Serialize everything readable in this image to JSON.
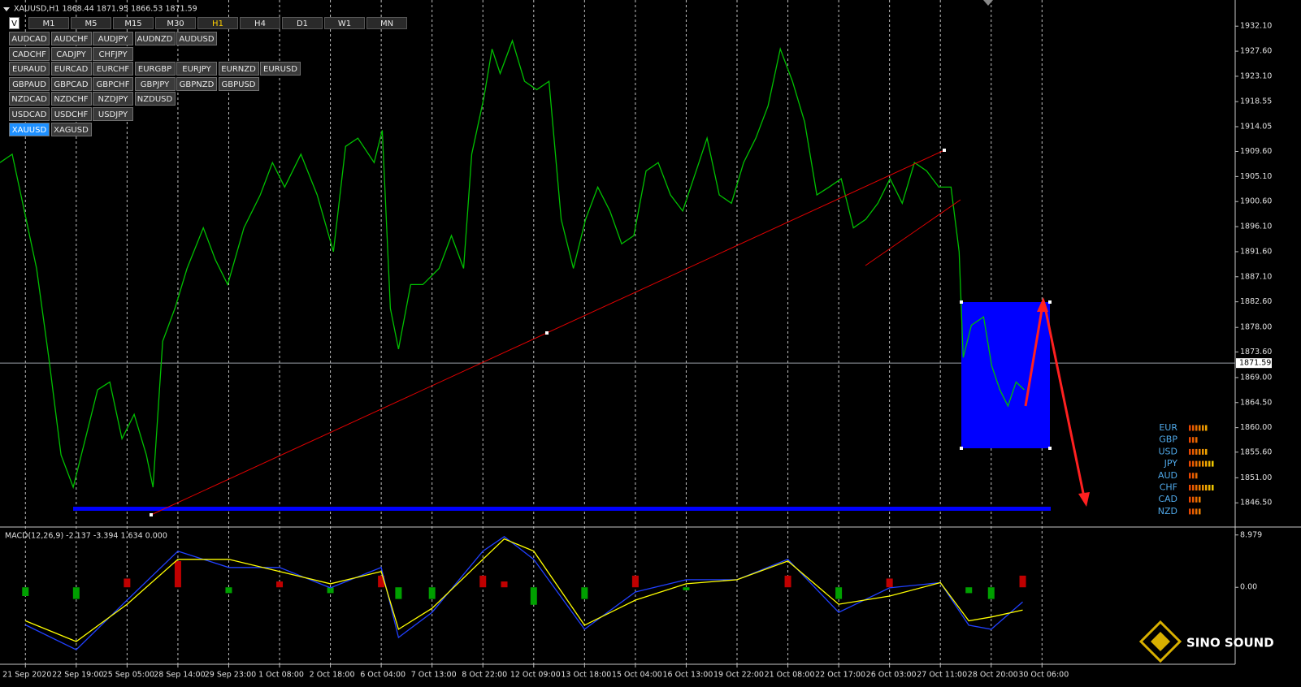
{
  "title": "XAUUSD,H1  1868.44 1871.95 1866.53 1871.59",
  "v_button": "V",
  "timeframes": [
    "M1",
    "M5",
    "M15",
    "M30",
    "H1",
    "H4",
    "D1",
    "W1",
    "MN"
  ],
  "active_timeframe": "H1",
  "symbols": [
    [
      "AUDCAD",
      "AUDCHF",
      "AUDJPY",
      "AUDNZD",
      "AUDUSD"
    ],
    [
      "CADCHF",
      "CADJPY",
      "CHFJPY"
    ],
    [
      "EURAUD",
      "EURCAD",
      "EURCHF",
      "EURGBP",
      "EURJPY",
      "EURNZD",
      "EURUSD"
    ],
    [
      "GBPAUD",
      "GBPCAD",
      "GBPCHF",
      "GBPJPY",
      "GBPNZD",
      "GBPUSD"
    ],
    [
      "NZDCAD",
      "NZDCHF",
      "NZDJPY",
      "NZDUSD"
    ],
    [
      "USDCAD",
      "USDCHF",
      "USDJPY"
    ],
    [
      "XAUUSD",
      "XAGUSD"
    ]
  ],
  "active_symbol": "XAUUSD",
  "watermark": "SINO SOUND",
  "currency_strength": {
    "currencies": [
      "EUR",
      "GBP",
      "USD",
      "JPY",
      "AUD",
      "CHF",
      "CAD",
      "NZD"
    ],
    "values": [
      6,
      3,
      6,
      8,
      3,
      8,
      4,
      4
    ]
  },
  "chart_data": [
    {
      "type": "line",
      "color": "#00c000",
      "grid": true,
      "x": [
        -0.5,
        -0.26,
        -0.02,
        0.22,
        0.46,
        0.7,
        0.94,
        1.18,
        1.42,
        1.66,
        1.9,
        2.14,
        2.38,
        2.51,
        2.7,
        2.94,
        3.18,
        3.5,
        3.74,
        3.98,
        4.3,
        4.62,
        4.86,
        5.1,
        5.42,
        5.74,
        6.06,
        6.3,
        6.54,
        6.86,
        7.02,
        7.18,
        7.34,
        7.58,
        7.82,
        8.14,
        8.38,
        8.62,
        8.78,
        9.02,
        9.18,
        9.34,
        9.58,
        9.82,
        10.06,
        10.3,
        10.54,
        10.78,
        11.02,
        11.26,
        11.5,
        11.73,
        11.97,
        12.21,
        12.45,
        12.69,
        12.93,
        13.25,
        13.41,
        13.65,
        13.89,
        14.13,
        14.37,
        14.61,
        14.85,
        15.09,
        15.33,
        15.57,
        15.81,
        16.05,
        16.29,
        16.53,
        16.77,
        17.01,
        17.25,
        17.49,
        17.73,
        17.97,
        18.21,
        18.37,
        18.45,
        18.61,
        18.85,
        19.01,
        19.17,
        19.33,
        19.49,
        19.65
      ],
      "values": [
        1907.6,
        1909.1,
        1898.9,
        1888.6,
        1872.6,
        1855.1,
        1849.3,
        1858.0,
        1866.8,
        1868.2,
        1858.0,
        1862.4,
        1855.1,
        1849.3,
        1875.5,
        1881.4,
        1888.6,
        1895.9,
        1890.1,
        1885.7,
        1895.9,
        1901.8,
        1907.6,
        1903.2,
        1909.1,
        1901.8,
        1891.6,
        1910.5,
        1912.0,
        1907.6,
        1913.4,
        1881.4,
        1874.1,
        1885.7,
        1885.7,
        1888.6,
        1894.5,
        1888.6,
        1909.1,
        1919.3,
        1928.0,
        1923.6,
        1929.5,
        1922.2,
        1920.7,
        1922.2,
        1897.4,
        1888.6,
        1897.4,
        1903.2,
        1898.9,
        1893.0,
        1894.5,
        1906.1,
        1907.6,
        1901.8,
        1898.9,
        1907.6,
        1912.0,
        1901.8,
        1900.3,
        1907.6,
        1912.0,
        1917.8,
        1928.0,
        1922.2,
        1914.9,
        1901.8,
        1903.2,
        1904.7,
        1895.9,
        1897.4,
        1900.3,
        1904.7,
        1900.3,
        1907.6,
        1906.1,
        1903.2,
        1903.2,
        1891.6,
        1872.6,
        1878.4,
        1879.9,
        1871.1,
        1866.8,
        1863.9,
        1868.2,
        1866.8
      ],
      "xlim": [
        -0.5,
        23.8
      ],
      "xticks": [
        {
          "value": 0,
          "label": "21 Sep 2020"
        },
        {
          "value": 1,
          "label": "22 Sep 19:00"
        },
        {
          "value": 2,
          "label": "25 Sep 05:00"
        },
        {
          "value": 3,
          "label": "28 Sep 14:00"
        },
        {
          "value": 4,
          "label": "29 Sep 23:00"
        },
        {
          "value": 5,
          "label": "1 Oct 08:00"
        },
        {
          "value": 6,
          "label": "2 Oct 18:00"
        },
        {
          "value": 7,
          "label": "6 Oct 04:00"
        },
        {
          "value": 8,
          "label": "7 Oct 13:00"
        },
        {
          "value": 9,
          "label": "8 Oct 22:00"
        },
        {
          "value": 10,
          "label": "12 Oct 09:00"
        },
        {
          "value": 11,
          "label": "13 Oct 18:00"
        },
        {
          "value": 12,
          "label": "15 Oct 04:00"
        },
        {
          "value": 13,
          "label": "16 Oct 13:00"
        },
        {
          "value": 14,
          "label": "19 Oct 22:00"
        },
        {
          "value": 15,
          "label": "21 Oct 08:00"
        },
        {
          "value": 16,
          "label": "22 Oct 17:00"
        },
        {
          "value": 17,
          "label": "26 Oct 03:00"
        },
        {
          "value": 18,
          "label": "27 Oct 11:00"
        },
        {
          "value": 19,
          "label": "28 Oct 20:00"
        },
        {
          "value": 20,
          "label": "30 Oct 06:00"
        }
      ],
      "ylim": [
        1842.3,
        1936.8
      ],
      "yticks": [
        {
          "value": 1932.1,
          "label": "1932.10"
        },
        {
          "value": 1927.6,
          "label": "1927.60"
        },
        {
          "value": 1923.1,
          "label": "1923.10"
        },
        1918.55,
        1914.05,
        {
          "value": 1909.6,
          "label": "1909.60"
        },
        {
          "value": 1905.1,
          "label": "1905.10"
        },
        {
          "value": 1900.6,
          "label": "1900.60"
        },
        {
          "value": 1896.1,
          "label": "1896.10"
        },
        {
          "value": 1891.6,
          "label": "1891.60"
        },
        {
          "value": 1887.1,
          "label": "1887.10"
        },
        {
          "value": 1882.6,
          "label": "1882.60"
        },
        {
          "value": 1878,
          "label": "1878.00"
        },
        {
          "value": 1873.6,
          "label": "1873.60"
        },
        {
          "value": 1869,
          "label": "1869.00"
        },
        {
          "value": 1864.5,
          "label": "1864.50"
        },
        {
          "value": 1860,
          "label": "1860.00"
        },
        {
          "value": 1855.6,
          "label": "1855.60"
        },
        {
          "value": 1851,
          "label": "1851.00"
        },
        {
          "value": 1846.5,
          "label": "1846.50"
        }
      ],
      "last_price": 1871.59
    },
    {
      "type": "macd",
      "title": "MACD(12,26,9) -2.137 -3.394 1.634 0.000",
      "x": [
        0,
        1,
        2,
        3,
        4,
        5,
        6,
        7,
        7.34,
        8,
        9,
        9.42,
        10,
        11,
        12,
        13,
        14,
        15,
        16,
        17,
        18,
        18.56,
        19,
        19.62
      ],
      "series": [
        {
          "color": "#2040ff",
          "values": [
            -6.45,
            -10.7,
            -2.2,
            6.2,
            3.4,
            3.4,
            -0.1,
            3.4,
            -8.6,
            -4.3,
            6.2,
            8.7,
            4.8,
            -7.2,
            -0.8,
            1.3,
            1.3,
            4.8,
            -4.3,
            -0.1,
            0.8,
            -6.5,
            -7.2,
            -2.5
          ]
        },
        {
          "color": "#ffff00",
          "values": [
            -5.75,
            -9.3,
            -2.9,
            4.8,
            4.8,
            2.7,
            0.6,
            2.7,
            -7.2,
            -3.6,
            4.8,
            8.3,
            6.2,
            -6.5,
            -2.2,
            0.6,
            1.3,
            4.5,
            -2.9,
            -1.5,
            0.8,
            -5.75,
            -5.1,
            -3.9
          ]
        }
      ],
      "histogram": [
        -1.5,
        -2,
        1.5,
        4.5,
        -1,
        1,
        -1,
        2,
        -2,
        -2,
        2,
        1,
        -3,
        -2,
        2,
        -0.5,
        0,
        2,
        -2,
        1.5,
        0,
        -1,
        -2,
        2
      ],
      "up_color": "#c00000",
      "down_color": "#00a000",
      "xlim": [
        -0.5,
        23.8
      ],
      "ylim": [
        -13.2,
        10.2
      ],
      "yticks": [
        8.979,
        {
          "value": 0,
          "label": "0.00"
        }
      ]
    }
  ]
}
